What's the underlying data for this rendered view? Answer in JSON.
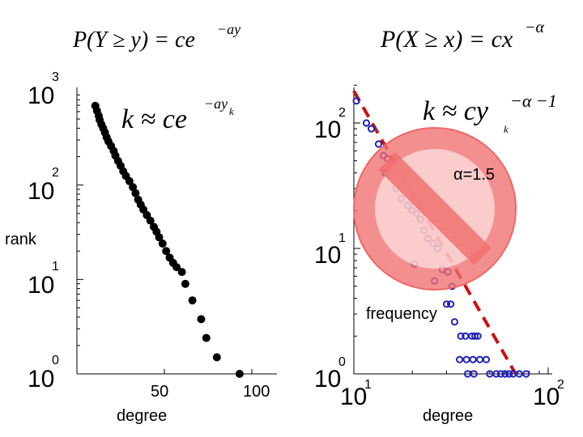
{
  "header": {
    "formula_left": "P(Y ≥ y) = ce^{−ay}",
    "formula_right": "P(X ≥ x) = cx^{−α}"
  },
  "chart_data": [
    {
      "type": "scatter",
      "xscale": "linear",
      "yscale": "log",
      "xlim": [
        0,
        115
      ],
      "ylim": [
        1,
        1000
      ],
      "x_ticks": [
        "50",
        "100"
      ],
      "y_ticks": [
        "10^0",
        "10^1",
        "10^2",
        "10^3"
      ],
      "xlabel": "degree",
      "ylabel": "rank",
      "annotation": "k ≈ ce^{−a y_k}",
      "marker_color": "#000000",
      "points": [
        [
          10.5,
          690
        ],
        [
          11.5,
          610
        ],
        [
          12.5,
          540
        ],
        [
          13,
          490
        ],
        [
          14,
          440
        ],
        [
          15,
          400
        ],
        [
          16,
          360
        ],
        [
          17,
          320
        ],
        [
          18,
          290
        ],
        [
          19.5,
          260
        ],
        [
          21,
          230
        ],
        [
          22,
          205
        ],
        [
          23.5,
          180
        ],
        [
          25,
          160
        ],
        [
          26.5,
          140
        ],
        [
          28,
          125
        ],
        [
          30,
          110
        ],
        [
          32,
          95
        ],
        [
          33.5,
          82
        ],
        [
          35,
          70
        ],
        [
          36.5,
          62
        ],
        [
          38,
          55
        ],
        [
          40,
          48
        ],
        [
          42,
          42
        ],
        [
          44,
          36
        ],
        [
          45.5,
          32
        ],
        [
          47,
          28
        ],
        [
          49,
          24
        ],
        [
          51,
          20
        ],
        [
          53,
          17
        ],
        [
          55,
          15
        ],
        [
          57,
          13.5
        ],
        [
          60,
          12
        ],
        [
          62,
          9
        ],
        [
          66,
          6
        ],
        [
          71,
          3.8
        ],
        [
          74,
          2.4
        ],
        [
          80,
          1.5
        ],
        [
          93,
          1
        ]
      ]
    },
    {
      "type": "scatter",
      "xscale": "log",
      "yscale": "log",
      "xlim": [
        10,
        100
      ],
      "ylim": [
        1,
        200
      ],
      "x_ticks": [
        "10^1",
        "10^2"
      ],
      "y_ticks": [
        "10^0",
        "10^1",
        "10^2"
      ],
      "xlabel": "degree",
      "ylabel": "frequency",
      "annotation": "k ≈ cy_k^{−α−1}",
      "fit_label": "α=1.5",
      "marker_color": "#2222bb",
      "fit_color": "#cc1111",
      "points": [
        [
          10.3,
          150
        ],
        [
          11.6,
          100
        ],
        [
          12.3,
          90
        ],
        [
          13.4,
          68
        ],
        [
          14.2,
          55
        ],
        [
          14.9,
          52
        ],
        [
          14.5,
          40
        ],
        [
          15.5,
          38
        ],
        [
          16.5,
          30
        ],
        [
          17.5,
          25
        ],
        [
          19,
          22
        ],
        [
          20,
          20
        ],
        [
          21,
          19
        ],
        [
          22,
          17
        ],
        [
          23,
          14
        ],
        [
          24,
          12
        ],
        [
          25.5,
          11
        ],
        [
          27,
          10
        ],
        [
          20.5,
          7.5
        ],
        [
          28.5,
          6.8
        ],
        [
          30.5,
          6.5
        ],
        [
          26,
          5.5
        ],
        [
          32,
          5
        ],
        [
          30,
          3.6
        ],
        [
          31.5,
          3.6
        ],
        [
          33,
          2.6
        ],
        [
          35.5,
          2.0
        ],
        [
          37.5,
          2.0
        ],
        [
          40.5,
          2.0
        ],
        [
          42,
          2.0
        ],
        [
          43.5,
          2.0
        ],
        [
          35,
          1.3
        ],
        [
          38,
          1.3
        ],
        [
          41,
          1.3
        ],
        [
          44.5,
          1.3
        ],
        [
          48,
          1.3
        ],
        [
          38.5,
          1.0
        ],
        [
          41.5,
          1.0
        ],
        [
          50,
          1.0
        ],
        [
          54,
          1.0
        ],
        [
          57,
          1.0
        ],
        [
          60,
          1.0
        ],
        [
          63,
          1.0
        ],
        [
          66,
          1.0
        ],
        [
          71,
          1.0
        ],
        [
          77,
          1.0
        ]
      ],
      "fit_line": [
        [
          10,
          180
        ],
        [
          68,
          1
        ]
      ]
    }
  ],
  "overlay": {
    "symbol": "prohibition-sign",
    "color": "#f07070"
  }
}
